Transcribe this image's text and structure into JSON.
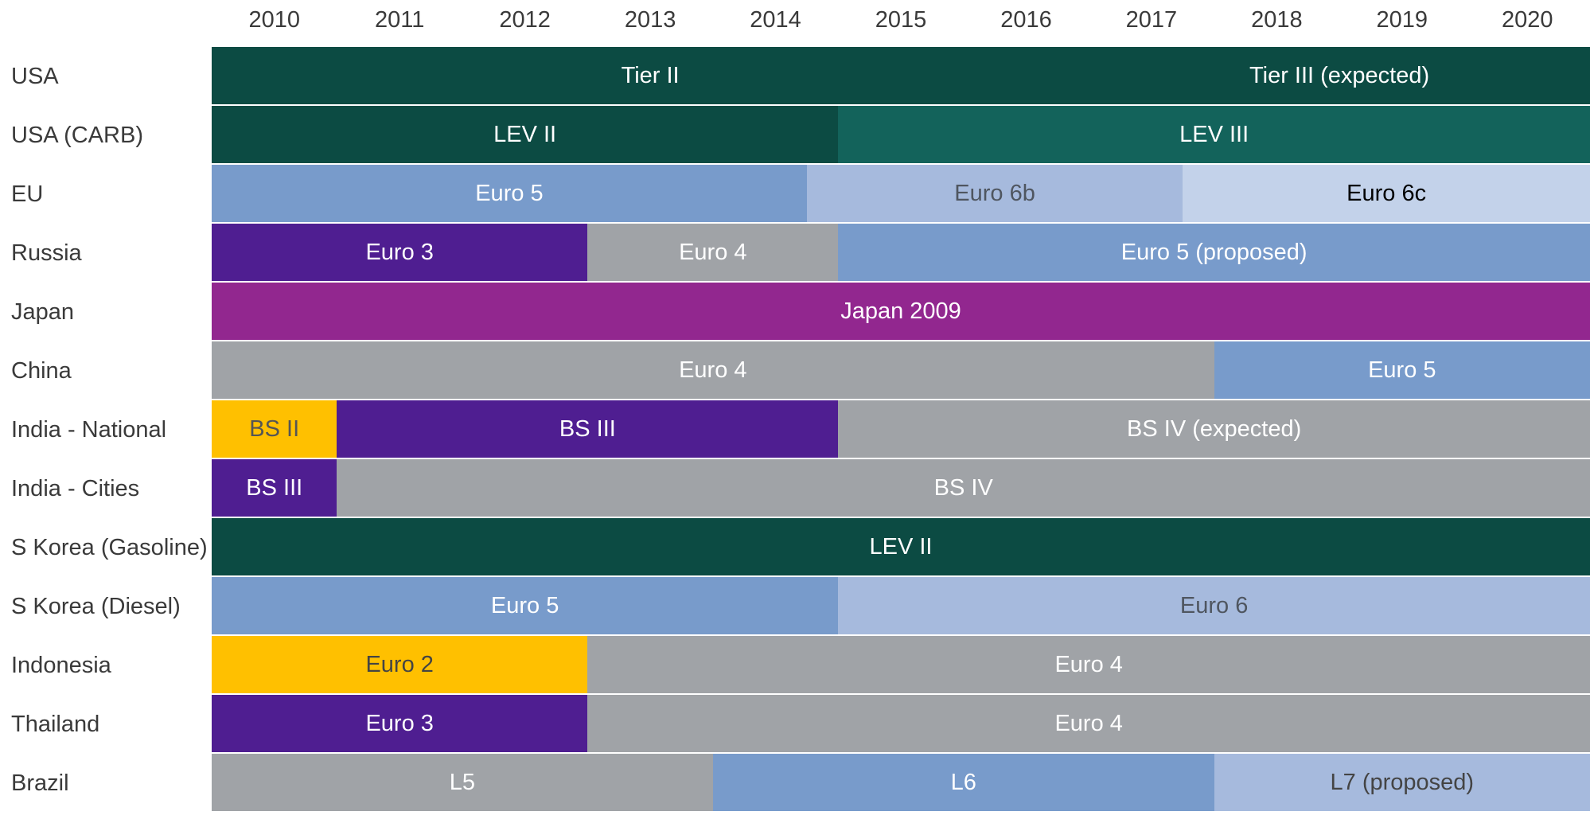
{
  "chart_data": {
    "type": "timeline",
    "categories": [
      "2010",
      "2011",
      "2012",
      "2013",
      "2014",
      "2015",
      "2016",
      "2017",
      "2018",
      "2019",
      "2020"
    ],
    "xlim": [
      2010,
      2021
    ],
    "rows": [
      {
        "label": "USA",
        "segments": [
          {
            "label": "Tier II",
            "start": 2010,
            "end": 2017,
            "color": "#0c4b43",
            "text_color": "#ffffff"
          },
          {
            "label": "Tier III (expected)",
            "start": 2017,
            "end": 2021,
            "color": "#0c4b43",
            "text_color": "#ffffff"
          }
        ]
      },
      {
        "label": "USA (CARB)",
        "segments": [
          {
            "label": "LEV II",
            "start": 2010,
            "end": 2015,
            "color": "#0c4b43",
            "text_color": "#ffffff"
          },
          {
            "label": "LEV III",
            "start": 2015,
            "end": 2021,
            "color": "#13635b",
            "text_color": "#ffffff"
          }
        ]
      },
      {
        "label": "EU",
        "segments": [
          {
            "label": "Euro 5",
            "start": 2010,
            "end": 2014.75,
            "color": "#789bcb",
            "text_color": "#ffffff"
          },
          {
            "label": "Euro 6b",
            "start": 2014.75,
            "end": 2017.75,
            "color": "#a6badd",
            "text_color": "#4f5660"
          },
          {
            "label": "Euro 6c",
            "start": 2017.75,
            "end": 2021,
            "color": "#c3d2ea",
            "text_color": "#000000"
          }
        ]
      },
      {
        "label": "Russia",
        "segments": [
          {
            "label": "Euro 3",
            "start": 2010,
            "end": 2013,
            "color": "#4f1e91",
            "text_color": "#ffffff"
          },
          {
            "label": "Euro 4",
            "start": 2013,
            "end": 2015,
            "color": "#a0a3a7",
            "text_color": "#ffffff"
          },
          {
            "label": "Euro 5 (proposed)",
            "start": 2015,
            "end": 2021,
            "color": "#789bcb",
            "text_color": "#ffffff"
          }
        ]
      },
      {
        "label": "Japan",
        "segments": [
          {
            "label": "Japan 2009",
            "start": 2010,
            "end": 2021,
            "color": "#92278f",
            "text_color": "#ffffff"
          }
        ]
      },
      {
        "label": "China",
        "segments": [
          {
            "label": "Euro 4",
            "start": 2010,
            "end": 2018,
            "color": "#a0a3a7",
            "text_color": "#ffffff"
          },
          {
            "label": "Euro 5",
            "start": 2018,
            "end": 2021,
            "color": "#789bcb",
            "text_color": "#ffffff"
          }
        ]
      },
      {
        "label": "India - National",
        "segments": [
          {
            "label": "BS II",
            "start": 2010,
            "end": 2011,
            "color": "#ffc000",
            "text_color": "#555555"
          },
          {
            "label": "BS III",
            "start": 2011,
            "end": 2015,
            "color": "#4f1e91",
            "text_color": "#ffffff"
          },
          {
            "label": "BS IV (expected)",
            "start": 2015,
            "end": 2021,
            "color": "#a0a3a7",
            "text_color": "#ffffff"
          }
        ]
      },
      {
        "label": "India - Cities",
        "segments": [
          {
            "label": "BS III",
            "start": 2010,
            "end": 2011,
            "color": "#4f1e91",
            "text_color": "#ffffff"
          },
          {
            "label": "BS IV",
            "start": 2011,
            "end": 2021,
            "color": "#a0a3a7",
            "text_color": "#ffffff"
          }
        ]
      },
      {
        "label": "S Korea (Gasoline)",
        "segments": [
          {
            "label": "LEV II",
            "start": 2010,
            "end": 2021,
            "color": "#0c4b43",
            "text_color": "#ffffff"
          }
        ]
      },
      {
        "label": "S Korea (Diesel)",
        "segments": [
          {
            "label": "Euro 5",
            "start": 2010,
            "end": 2015,
            "color": "#789bcb",
            "text_color": "#ffffff"
          },
          {
            "label": "Euro 6",
            "start": 2015,
            "end": 2021,
            "color": "#a6badd",
            "text_color": "#4f5660"
          }
        ]
      },
      {
        "label": "Indonesia",
        "segments": [
          {
            "label": "Euro 2",
            "start": 2010,
            "end": 2013,
            "color": "#ffc000",
            "text_color": "#444444"
          },
          {
            "label": "Euro 4",
            "start": 2013,
            "end": 2021,
            "color": "#a0a3a7",
            "text_color": "#ffffff"
          }
        ]
      },
      {
        "label": "Thailand",
        "segments": [
          {
            "label": "Euro 3",
            "start": 2010,
            "end": 2013,
            "color": "#4f1e91",
            "text_color": "#ffffff"
          },
          {
            "label": "Euro 4",
            "start": 2013,
            "end": 2021,
            "color": "#a0a3a7",
            "text_color": "#ffffff"
          }
        ]
      },
      {
        "label": "Brazil",
        "segments": [
          {
            "label": "L5",
            "start": 2010,
            "end": 2014,
            "color": "#a0a3a7",
            "text_color": "#ffffff"
          },
          {
            "label": "L6",
            "start": 2014,
            "end": 2018,
            "color": "#789bcb",
            "text_color": "#ffffff"
          },
          {
            "label": "L7 (proposed)",
            "start": 2018,
            "end": 2021,
            "color": "#a6badd",
            "text_color": "#444444"
          }
        ]
      }
    ]
  }
}
